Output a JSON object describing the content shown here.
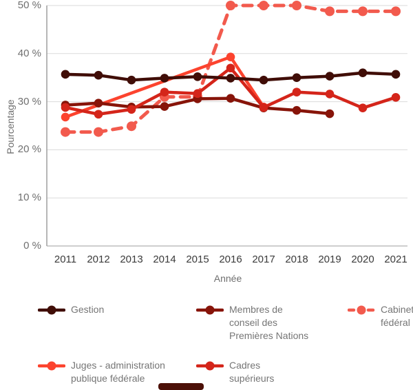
{
  "chart_data": {
    "type": "line",
    "xlabel": "Année",
    "ylabel": "Pourcentage",
    "ylim": [
      0,
      50
    ],
    "y_ticks": [
      "0 %",
      "10 %",
      "20 %",
      "30 %",
      "40 %",
      "50 %"
    ],
    "y_tick_values": [
      0,
      10,
      20,
      30,
      40,
      50
    ],
    "x_ticks": [
      "2011",
      "2012",
      "2013",
      "2014",
      "2015",
      "2016",
      "2017",
      "2018",
      "2019",
      "2020",
      "2021"
    ],
    "grid": true,
    "legend_position": "bottom",
    "series": [
      {
        "name": "Gestion",
        "color": "#400d07",
        "dashed": false,
        "points": [
          [
            2011,
            35.7
          ],
          [
            2012,
            35.5
          ],
          [
            2013,
            34.5
          ],
          [
            2014,
            34.9
          ],
          [
            2015,
            35.2
          ],
          [
            2016,
            34.9
          ],
          [
            2017,
            34.5
          ],
          [
            2018,
            35.0
          ],
          [
            2019,
            35.3
          ],
          [
            2020,
            36.0
          ],
          [
            2021,
            35.7
          ]
        ]
      },
      {
        "name": "Membres de conseil des Premières Nations",
        "color": "#871409",
        "dashed": false,
        "points": [
          [
            2011,
            29.3
          ],
          [
            2012,
            29.7
          ],
          [
            2013,
            28.9
          ],
          [
            2014,
            29.0
          ],
          [
            2015,
            30.6
          ],
          [
            2016,
            30.7
          ],
          [
            2017,
            28.7
          ],
          [
            2018,
            28.2
          ],
          [
            2019,
            27.5
          ]
        ]
      },
      {
        "name": "Cabinet fédéral",
        "color": "#f25a4d",
        "dashed": true,
        "points": [
          [
            2011,
            23.7
          ],
          [
            2012,
            23.7
          ],
          [
            2013,
            24.9
          ],
          [
            2014,
            31.0
          ],
          [
            2015,
            31.0
          ],
          [
            2016,
            50.0
          ],
          [
            2017,
            50.0
          ],
          [
            2018,
            50.0
          ],
          [
            2019,
            48.8
          ],
          [
            2020,
            48.8
          ],
          [
            2021,
            48.8
          ]
        ]
      },
      {
        "name": "Juges - administration publique fédérale",
        "color": "#fc432e",
        "dashed": false,
        "points": [
          [
            2011,
            26.8
          ],
          [
            2016,
            39.3
          ],
          [
            2017,
            28.9
          ]
        ]
      },
      {
        "name": "Cadres supérieurs",
        "color": "#d4251a",
        "dashed": false,
        "points": [
          [
            2011,
            28.8
          ],
          [
            2012,
            27.4
          ],
          [
            2013,
            28.4
          ],
          [
            2014,
            32.0
          ],
          [
            2015,
            31.7
          ],
          [
            2016,
            37.0
          ],
          [
            2017,
            28.8
          ],
          [
            2018,
            32.0
          ],
          [
            2019,
            31.6
          ],
          [
            2020,
            28.7
          ],
          [
            2021,
            30.9
          ]
        ]
      }
    ]
  },
  "legend": {
    "items": [
      {
        "series": 0,
        "label_lines": [
          "Gestion"
        ]
      },
      {
        "series": 1,
        "label_lines": [
          "Membres de",
          "conseil des",
          "Premières Nations"
        ]
      },
      {
        "series": 2,
        "label_lines": [
          "Cabinet",
          "fédéral"
        ]
      },
      {
        "series": 3,
        "label_lines": [
          "Juges - administration",
          "publique fédérale"
        ]
      },
      {
        "series": 4,
        "label_lines": [
          "Cadres",
          "supérieurs"
        ]
      }
    ]
  }
}
